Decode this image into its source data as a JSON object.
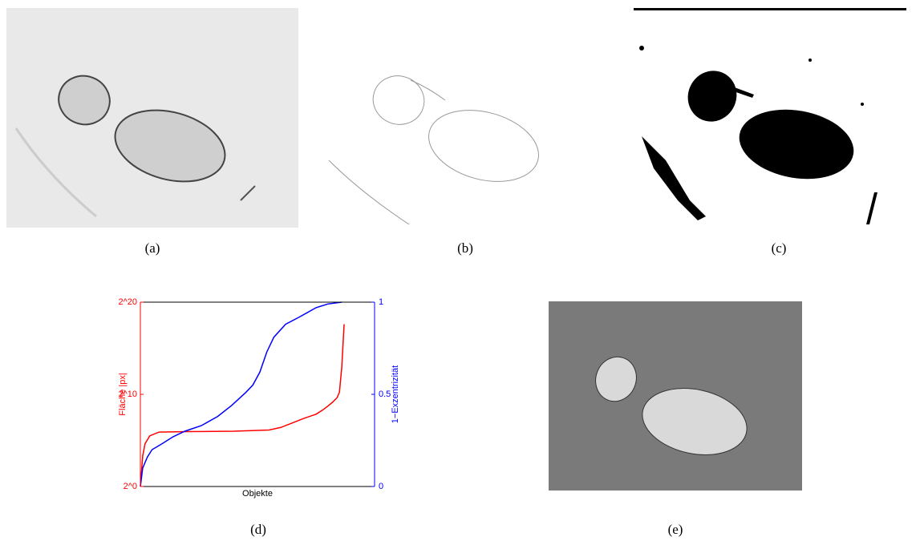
{
  "captions": [
    "(a)",
    "(b)",
    "(c)",
    "(d)",
    "(e)"
  ],
  "chart_data": {
    "type": "line",
    "xlabel": "Objekte",
    "ylabel": "Fläche |px|",
    "y2label": "1−Exzentrizität",
    "xlim": [
      0,
      100
    ],
    "ylim": [
      1,
      1048576
    ],
    "ylog": true,
    "logbase": 2,
    "yticks": [
      {
        "value": 1,
        "label": "2^0"
      },
      {
        "value": 1024,
        "label": "2^10"
      },
      {
        "value": 1048576,
        "label": "2^20"
      }
    ],
    "y2lim": [
      0,
      1
    ],
    "y2ticks": [
      0,
      0.5,
      1
    ],
    "series": [
      {
        "color": "#ff0000",
        "axis": "y",
        "x": [
          0,
          1,
          2,
          4,
          8,
          20,
          40,
          55,
          60,
          65,
          70,
          75,
          78,
          80,
          82,
          84,
          85,
          86,
          87
        ],
        "values": [
          1,
          10,
          25,
          45,
          60,
          62,
          64,
          70,
          85,
          120,
          170,
          230,
          320,
          420,
          560,
          800,
          1200,
          8000,
          200000
        ]
      },
      {
        "color": "#0000ff",
        "axis": "y2",
        "x": [
          0,
          1,
          3,
          5,
          9,
          14,
          19,
          26,
          33,
          39,
          45,
          48,
          51,
          54,
          57,
          62,
          68,
          75,
          80,
          86
        ],
        "values": [
          0,
          0.1,
          0.16,
          0.2,
          0.23,
          0.27,
          0.3,
          0.33,
          0.38,
          0.44,
          0.51,
          0.55,
          0.62,
          0.73,
          0.81,
          0.88,
          0.92,
          0.97,
          0.99,
          1
        ]
      }
    ]
  }
}
